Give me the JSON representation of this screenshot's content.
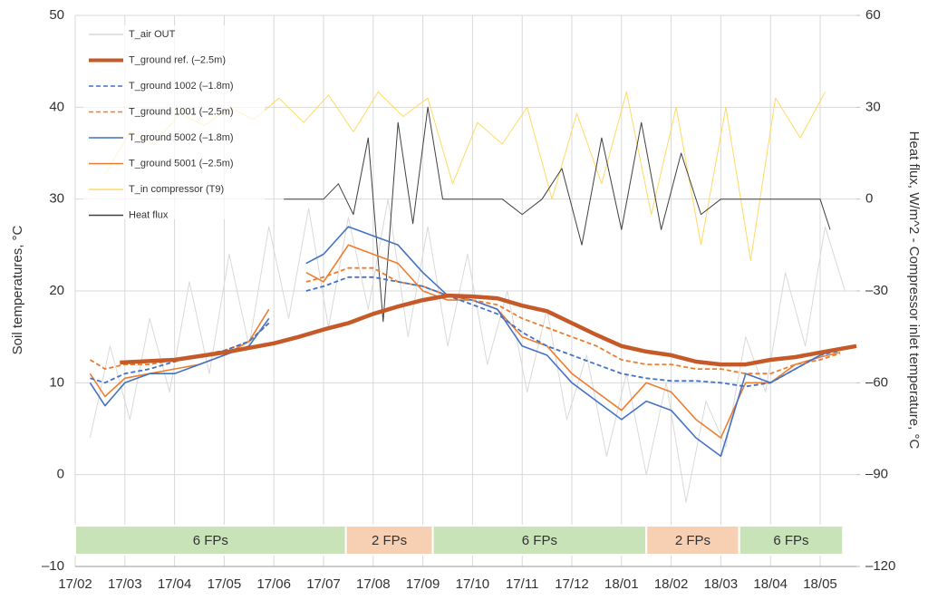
{
  "chart_data": {
    "type": "line",
    "y_label": "Soil temperatures, °C",
    "y2_label": "Heat flux, W/m^2 - Compressor inlet temperature, °C",
    "xlim": [
      0,
      15.73
    ],
    "xticks": [
      {
        "value": 0,
        "label": "17/02"
      },
      {
        "value": 1,
        "label": "17/03"
      },
      {
        "value": 2,
        "label": "17/04"
      },
      {
        "value": 3,
        "label": "17/05"
      },
      {
        "value": 4,
        "label": "17/06"
      },
      {
        "value": 5,
        "label": "17/07"
      },
      {
        "value": 6,
        "label": "17/08"
      },
      {
        "value": 7,
        "label": "17/09"
      },
      {
        "value": 8,
        "label": "17/10"
      },
      {
        "value": 9,
        "label": "17/11"
      },
      {
        "value": 10,
        "label": "17/12"
      },
      {
        "value": 11,
        "label": "18/01"
      },
      {
        "value": 12,
        "label": "18/02"
      },
      {
        "value": 13,
        "label": "18/03"
      },
      {
        "value": 14,
        "label": "18/04"
      },
      {
        "value": 15,
        "label": "18/05"
      }
    ],
    "ylim": [
      -10,
      50
    ],
    "yticks": [
      {
        "value": -10,
        "label": "–10"
      },
      0,
      10,
      20,
      30,
      40,
      50
    ],
    "y2lim": [
      -120,
      60
    ],
    "y2ticks": [
      {
        "value": -120,
        "label": "–120"
      },
      {
        "value": -90,
        "label": "–90"
      },
      {
        "value": -60,
        "label": "–60"
      },
      {
        "value": -30,
        "label": "–30"
      },
      0,
      30,
      60
    ],
    "grid": true,
    "legend": "upper left",
    "series": [
      {
        "name": "T_air OUT",
        "color": "#d9d9d9",
        "style": "solid",
        "x": [
          0.3,
          0.7,
          1.1,
          1.5,
          1.9,
          2.3,
          2.7,
          3.1,
          3.5,
          3.9,
          4.3,
          4.7,
          5.1,
          5.5,
          5.9,
          6.3,
          6.7,
          7.1,
          7.5,
          7.9,
          8.3,
          8.7,
          9.1,
          9.5,
          9.9,
          10.3,
          10.7,
          11.1,
          11.5,
          11.9,
          12.3,
          12.7,
          13.1,
          13.5,
          13.9,
          14.3,
          14.7,
          15.1,
          15.5
        ],
        "values": [
          4,
          14,
          6,
          17,
          9,
          21,
          11,
          24,
          14,
          27,
          17,
          29,
          16,
          28,
          18,
          30,
          15,
          27,
          14,
          24,
          12,
          20,
          9,
          18,
          6,
          13,
          2,
          11,
          0,
          10,
          -3,
          8,
          3,
          15,
          9,
          22,
          14,
          27,
          20
        ]
      },
      {
        "name": "T_ground ref. (–2.5m)",
        "color": "#c55a28",
        "style": "thick",
        "x": [
          0.9,
          2,
          3,
          4,
          4.5,
          5,
          5.5,
          6,
          6.5,
          7,
          7.5,
          8,
          8.5,
          9,
          9.5,
          10,
          10.5,
          11,
          11.5,
          12,
          12.5,
          13,
          13.5,
          14,
          14.5,
          15,
          15.73
        ],
        "values": [
          12.2,
          12.5,
          13.3,
          14.3,
          15,
          15.8,
          16.5,
          17.5,
          18.3,
          19,
          19.5,
          19.4,
          19.2,
          18.4,
          17.8,
          16.5,
          15.2,
          14,
          13.4,
          13,
          12.3,
          12,
          12,
          12.5,
          12.8,
          13.3,
          14
        ]
      },
      {
        "name": "T_ground 1002 (–1.8m)",
        "color": "#4472c4",
        "style": "dashed",
        "x": [
          0.3,
          0.6,
          1.0,
          1.5,
          2.0,
          2.5,
          3.0,
          3.5,
          3.9,
          4.3,
          4.65,
          5.0,
          5.5,
          6.0,
          6.5,
          7.0,
          7.5,
          8.0,
          8.5,
          9.0,
          9.5,
          10.0,
          10.5,
          11.0,
          11.5,
          12.0,
          12.5,
          13.0,
          13.5,
          14.0,
          14.5,
          15.0,
          15.4
        ],
        "values": [
          10.5,
          10,
          11,
          11.5,
          12.3,
          13,
          13.5,
          14.5,
          16.5,
          null,
          20,
          20.5,
          21.5,
          21.5,
          21,
          20.5,
          19.5,
          18.5,
          17.5,
          15.5,
          14,
          13,
          12,
          11,
          10.5,
          10.2,
          10.2,
          10,
          9.6,
          10,
          11.5,
          13,
          13.5
        ]
      },
      {
        "name": "T_ground 1001 (–2.5m)",
        "color": "#ed7d31",
        "style": "dashed",
        "x": [
          0.3,
          0.6,
          1.0,
          1.5,
          2.0,
          2.5,
          3.0,
          3.5,
          3.9,
          4.3,
          4.65,
          5.0,
          5.5,
          6.0,
          6.5,
          7.0,
          7.5,
          8.0,
          8.5,
          9.0,
          9.5,
          10.0,
          10.5,
          11.0,
          11.5,
          12.0,
          12.5,
          13.0,
          13.5,
          14.0,
          14.5,
          15.0,
          15.4
        ],
        "values": [
          12.5,
          11.5,
          12,
          12,
          12.5,
          13,
          13.5,
          14.5,
          16.5,
          null,
          21,
          21.5,
          22.5,
          22.5,
          21,
          20.5,
          19.5,
          19,
          18.5,
          17,
          16,
          15,
          14,
          12.5,
          12,
          12,
          11.5,
          11.5,
          11,
          11,
          12,
          12.5,
          13.2
        ]
      },
      {
        "name": "T_ground 5002 (–1.8m)",
        "color": "#4472c4",
        "style": "solid",
        "x": [
          0.3,
          0.6,
          1.0,
          1.5,
          2.0,
          2.5,
          3.0,
          3.5,
          3.9,
          4.3,
          4.65,
          5.0,
          5.5,
          6.0,
          6.5,
          7.0,
          7.5,
          8.0,
          8.5,
          9.0,
          9.5,
          10.0,
          10.5,
          11.0,
          11.5,
          12.0,
          12.5,
          13.0,
          13.5,
          14.0,
          14.5,
          15.0,
          15.4
        ],
        "values": [
          10,
          7.5,
          10,
          11,
          11,
          12,
          13,
          14,
          17,
          null,
          23,
          24,
          27,
          26,
          25,
          22,
          19.5,
          19,
          18,
          14,
          13,
          10,
          8,
          6,
          8,
          7,
          4,
          2,
          11,
          10,
          11.5,
          13,
          13.8
        ]
      },
      {
        "name": "T_ground 5001 (–2.5m)",
        "color": "#ed7d31",
        "style": "solid",
        "x": [
          0.3,
          0.6,
          1.0,
          1.5,
          2.0,
          2.5,
          3.0,
          3.5,
          3.9,
          4.3,
          4.65,
          5.0,
          5.5,
          6.0,
          6.5,
          7.0,
          7.5,
          8.0,
          8.5,
          9.0,
          9.5,
          10.0,
          10.5,
          11.0,
          11.5,
          12.0,
          12.5,
          13.0,
          13.5,
          14.0,
          14.5,
          15.0,
          15.4
        ],
        "values": [
          11,
          8.5,
          10.5,
          11,
          11.5,
          12,
          13,
          14.5,
          18,
          null,
          22,
          21,
          25,
          24,
          23,
          20,
          19,
          19,
          18,
          15,
          14,
          11,
          9,
          7,
          10,
          9,
          6,
          4,
          10,
          10,
          12,
          12.8,
          13.3
        ]
      },
      {
        "name": "T_in compressor (T9)",
        "color": "#ffd966",
        "style": "solid",
        "axis": "y2",
        "x": [
          0.6,
          1.1,
          1.6,
          2.1,
          2.6,
          3.1,
          3.6,
          4.1,
          4.6,
          5.1,
          5.6,
          6.1,
          6.6,
          7.1,
          7.6,
          8.1,
          8.6,
          9.1,
          9.6,
          10.1,
          10.6,
          11.1,
          11.6,
          12.1,
          12.6,
          13.1,
          13.6,
          14.1,
          14.6,
          15.1
        ],
        "values": [
          8,
          22,
          18,
          28,
          24,
          30,
          26,
          33,
          25,
          34,
          22,
          35,
          27,
          33,
          5,
          25,
          18,
          30,
          0,
          28,
          5,
          35,
          -5,
          30,
          -15,
          30,
          -20,
          33,
          20,
          35
        ]
      },
      {
        "name": "Heat flux",
        "color": "#404040",
        "style": "solid",
        "axis": "y2",
        "x": [
          4.2,
          4.6,
          5.0,
          5.3,
          5.6,
          5.9,
          6.2,
          6.5,
          6.8,
          7.1,
          7.4,
          7.8,
          8.2,
          8.6,
          9.0,
          9.4,
          9.8,
          10.2,
          10.6,
          11.0,
          11.4,
          11.8,
          12.2,
          12.6,
          13.0,
          13.4,
          13.8,
          14.2,
          14.6,
          15.0,
          15.2
        ],
        "values": [
          0,
          0,
          0,
          5,
          -5,
          20,
          -40,
          25,
          -8,
          30,
          0,
          0,
          0,
          0,
          -5,
          0,
          10,
          -15,
          20,
          -10,
          25,
          -10,
          15,
          -5,
          0,
          0,
          0,
          0,
          0,
          0,
          -10
        ]
      }
    ],
    "regions": [
      {
        "label": "6 FPs",
        "start": 0,
        "end": 5.45,
        "color": "#c9e3b9"
      },
      {
        "label": "2 FPs",
        "start": 5.45,
        "end": 7.2,
        "color": "#f7cfb2"
      },
      {
        "label": "6 FPs",
        "start": 7.2,
        "end": 11.5,
        "color": "#c9e3b9"
      },
      {
        "label": "2 FPs",
        "start": 11.5,
        "end": 13.37,
        "color": "#f7cfb2"
      },
      {
        "label": "6 FPs",
        "start": 13.37,
        "end": 15.46,
        "color": "#c9e3b9"
      }
    ]
  }
}
